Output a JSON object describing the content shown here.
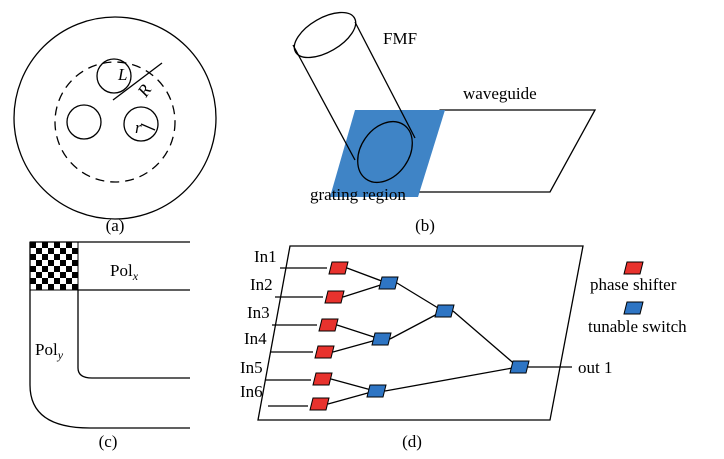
{
  "panels": {
    "a": {
      "label": "(a)",
      "symbols": {
        "L": "L",
        "R": "R",
        "r": "r"
      }
    },
    "b": {
      "label": "(b)",
      "fmf": "FMF",
      "waveguide": "waveguide",
      "grating": "grating region"
    },
    "c": {
      "label": "(c)",
      "pol_x": {
        "base": "Pol",
        "sub": "x"
      },
      "pol_y": {
        "base": "Pol",
        "sub": "y"
      }
    },
    "d": {
      "label": "(d)",
      "inputs": [
        "In1",
        "In2",
        "In3",
        "In4",
        "In5",
        "In6"
      ],
      "output": "out 1",
      "legend": {
        "phase_shifter": "phase shifter",
        "tunable_switch": "tunable switch"
      }
    }
  }
}
